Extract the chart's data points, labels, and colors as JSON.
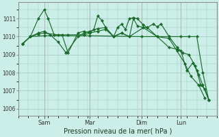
{
  "title": "Pression niveau de la mer( hPa )",
  "bg_color": "#cceee8",
  "grid_color": "#99ccbb",
  "line_color": "#1a6b2a",
  "ylim": [
    1005.6,
    1011.9
  ],
  "yticks": [
    1006,
    1007,
    1008,
    1009,
    1010,
    1011
  ],
  "xlim": [
    0,
    100
  ],
  "day_ticks": [
    13,
    36,
    62,
    82
  ],
  "day_labels": [
    "Sam",
    "Mar",
    "Dim",
    "Lun"
  ],
  "lines": [
    [
      [
        2,
        1009.6
      ],
      [
        6,
        1010.0
      ],
      [
        10,
        1011.0
      ],
      [
        13,
        1011.5
      ],
      [
        15,
        1011.0
      ],
      [
        18,
        1010.1
      ],
      [
        22,
        1010.1
      ],
      [
        25,
        1009.1
      ],
      [
        30,
        1010.2
      ],
      [
        33,
        1010.3
      ],
      [
        36,
        1010.2
      ],
      [
        38,
        1010.4
      ],
      [
        40,
        1011.15
      ],
      [
        42,
        1010.9
      ],
      [
        44,
        1010.5
      ],
      [
        48,
        1010.0
      ],
      [
        50,
        1010.5
      ],
      [
        52,
        1010.7
      ],
      [
        54,
        1010.4
      ],
      [
        56,
        1011.0
      ],
      [
        58,
        1011.05
      ],
      [
        60,
        1011.0
      ],
      [
        63,
        1010.65
      ],
      [
        65,
        1010.5
      ],
      [
        68,
        1010.7
      ],
      [
        70,
        1010.55
      ],
      [
        72,
        1010.7
      ],
      [
        76,
        1010.0
      ],
      [
        80,
        1009.4
      ],
      [
        82,
        1009.2
      ],
      [
        85,
        1008.1
      ],
      [
        88,
        1008.55
      ],
      [
        90,
        1008.1
      ],
      [
        92,
        1007.3
      ],
      [
        94,
        1007.1
      ],
      [
        96,
        1006.5
      ]
    ],
    [
      [
        2,
        1009.6
      ],
      [
        6,
        1010.0
      ],
      [
        13,
        1010.05
      ],
      [
        36,
        1010.05
      ],
      [
        62,
        1010.0
      ],
      [
        76,
        1010.0
      ],
      [
        82,
        1010.0
      ],
      [
        86,
        1010.0
      ],
      [
        90,
        1010.0
      ],
      [
        93,
        1008.0
      ],
      [
        96,
        1006.5
      ]
    ],
    [
      [
        2,
        1009.6
      ],
      [
        6,
        1010.0
      ],
      [
        10,
        1010.2
      ],
      [
        13,
        1010.3
      ],
      [
        16,
        1010.1
      ],
      [
        20,
        1009.7
      ],
      [
        24,
        1009.1
      ],
      [
        30,
        1010.0
      ],
      [
        33,
        1010.2
      ],
      [
        36,
        1010.3
      ],
      [
        40,
        1010.45
      ],
      [
        44,
        1010.5
      ],
      [
        48,
        1010.0
      ],
      [
        52,
        1010.2
      ],
      [
        56,
        1010.0
      ],
      [
        58,
        1011.0
      ],
      [
        60,
        1010.6
      ],
      [
        63,
        1010.5
      ],
      [
        70,
        1010.0
      ],
      [
        76,
        1009.9
      ],
      [
        80,
        1009.2
      ],
      [
        84,
        1008.5
      ],
      [
        87,
        1007.8
      ],
      [
        91,
        1007.3
      ],
      [
        94,
        1006.6
      ]
    ],
    [
      [
        2,
        1009.6
      ],
      [
        6,
        1010.0
      ],
      [
        10,
        1010.15
      ],
      [
        13,
        1010.2
      ],
      [
        20,
        1010.1
      ],
      [
        25,
        1010.1
      ],
      [
        33,
        1010.1
      ],
      [
        36,
        1010.2
      ],
      [
        40,
        1010.3
      ],
      [
        44,
        1010.4
      ],
      [
        48,
        1010.0
      ],
      [
        52,
        1010.2
      ],
      [
        56,
        1010.0
      ],
      [
        63,
        1010.5
      ],
      [
        65,
        1010.5
      ],
      [
        70,
        1010.0
      ],
      [
        76,
        1009.4
      ],
      [
        80,
        1009.3
      ],
      [
        83,
        1009.1
      ],
      [
        86,
        1009.0
      ],
      [
        89,
        1008.4
      ],
      [
        91,
        1007.9
      ],
      [
        93,
        1007.3
      ],
      [
        96,
        1006.5
      ]
    ]
  ]
}
